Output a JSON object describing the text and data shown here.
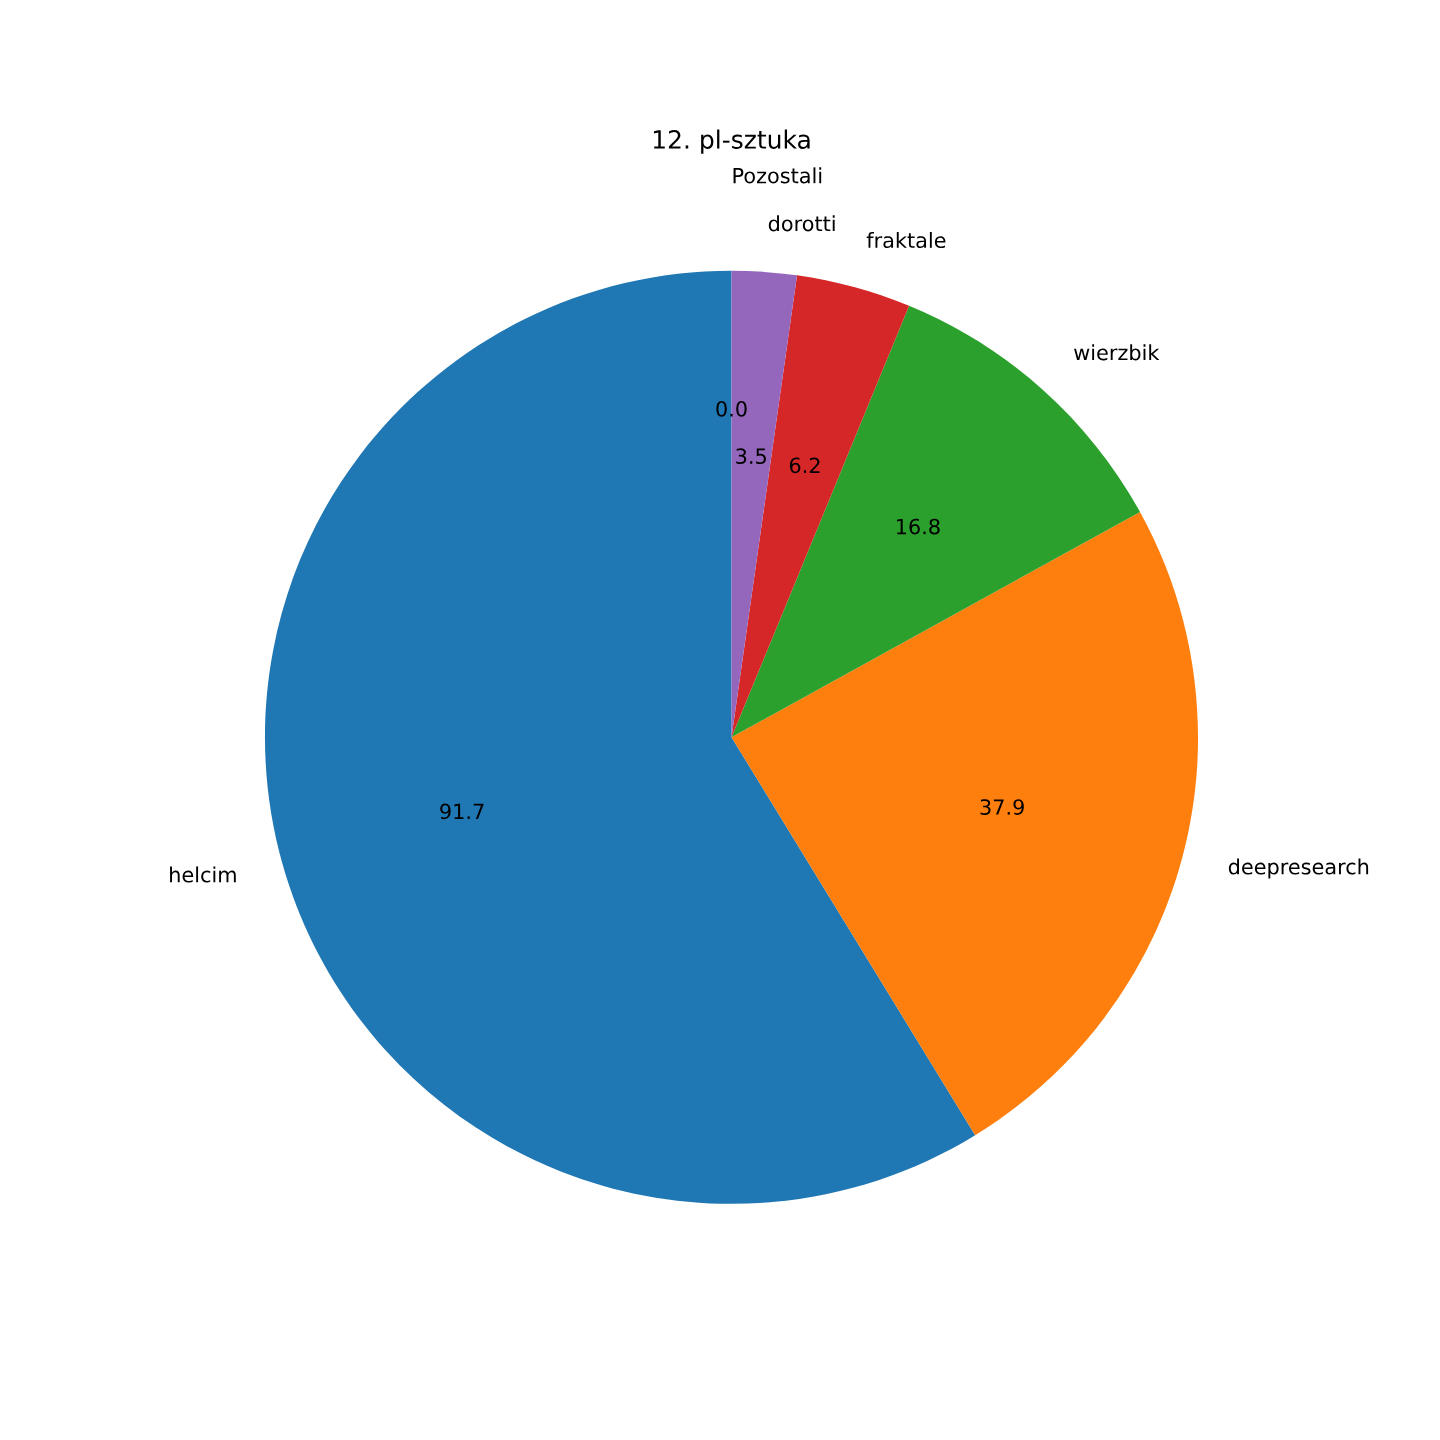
{
  "chart_data": {
    "type": "pie",
    "title": "12. pl-sztuka",
    "categories": [
      "helcim",
      "deepresearch",
      "wierzbik",
      "fraktale",
      "dorotti",
      "Pozostali"
    ],
    "values": [
      91.7,
      37.9,
      16.8,
      6.2,
      3.5,
      0.0
    ],
    "colors": [
      "#1f77b4",
      "#ff7f0e",
      "#2ca02c",
      "#d62728",
      "#9467bd",
      "#8c564b"
    ],
    "value_labels": [
      "91.7",
      "37.9",
      "16.8",
      "6.2",
      "3.5",
      "0.0"
    ]
  }
}
